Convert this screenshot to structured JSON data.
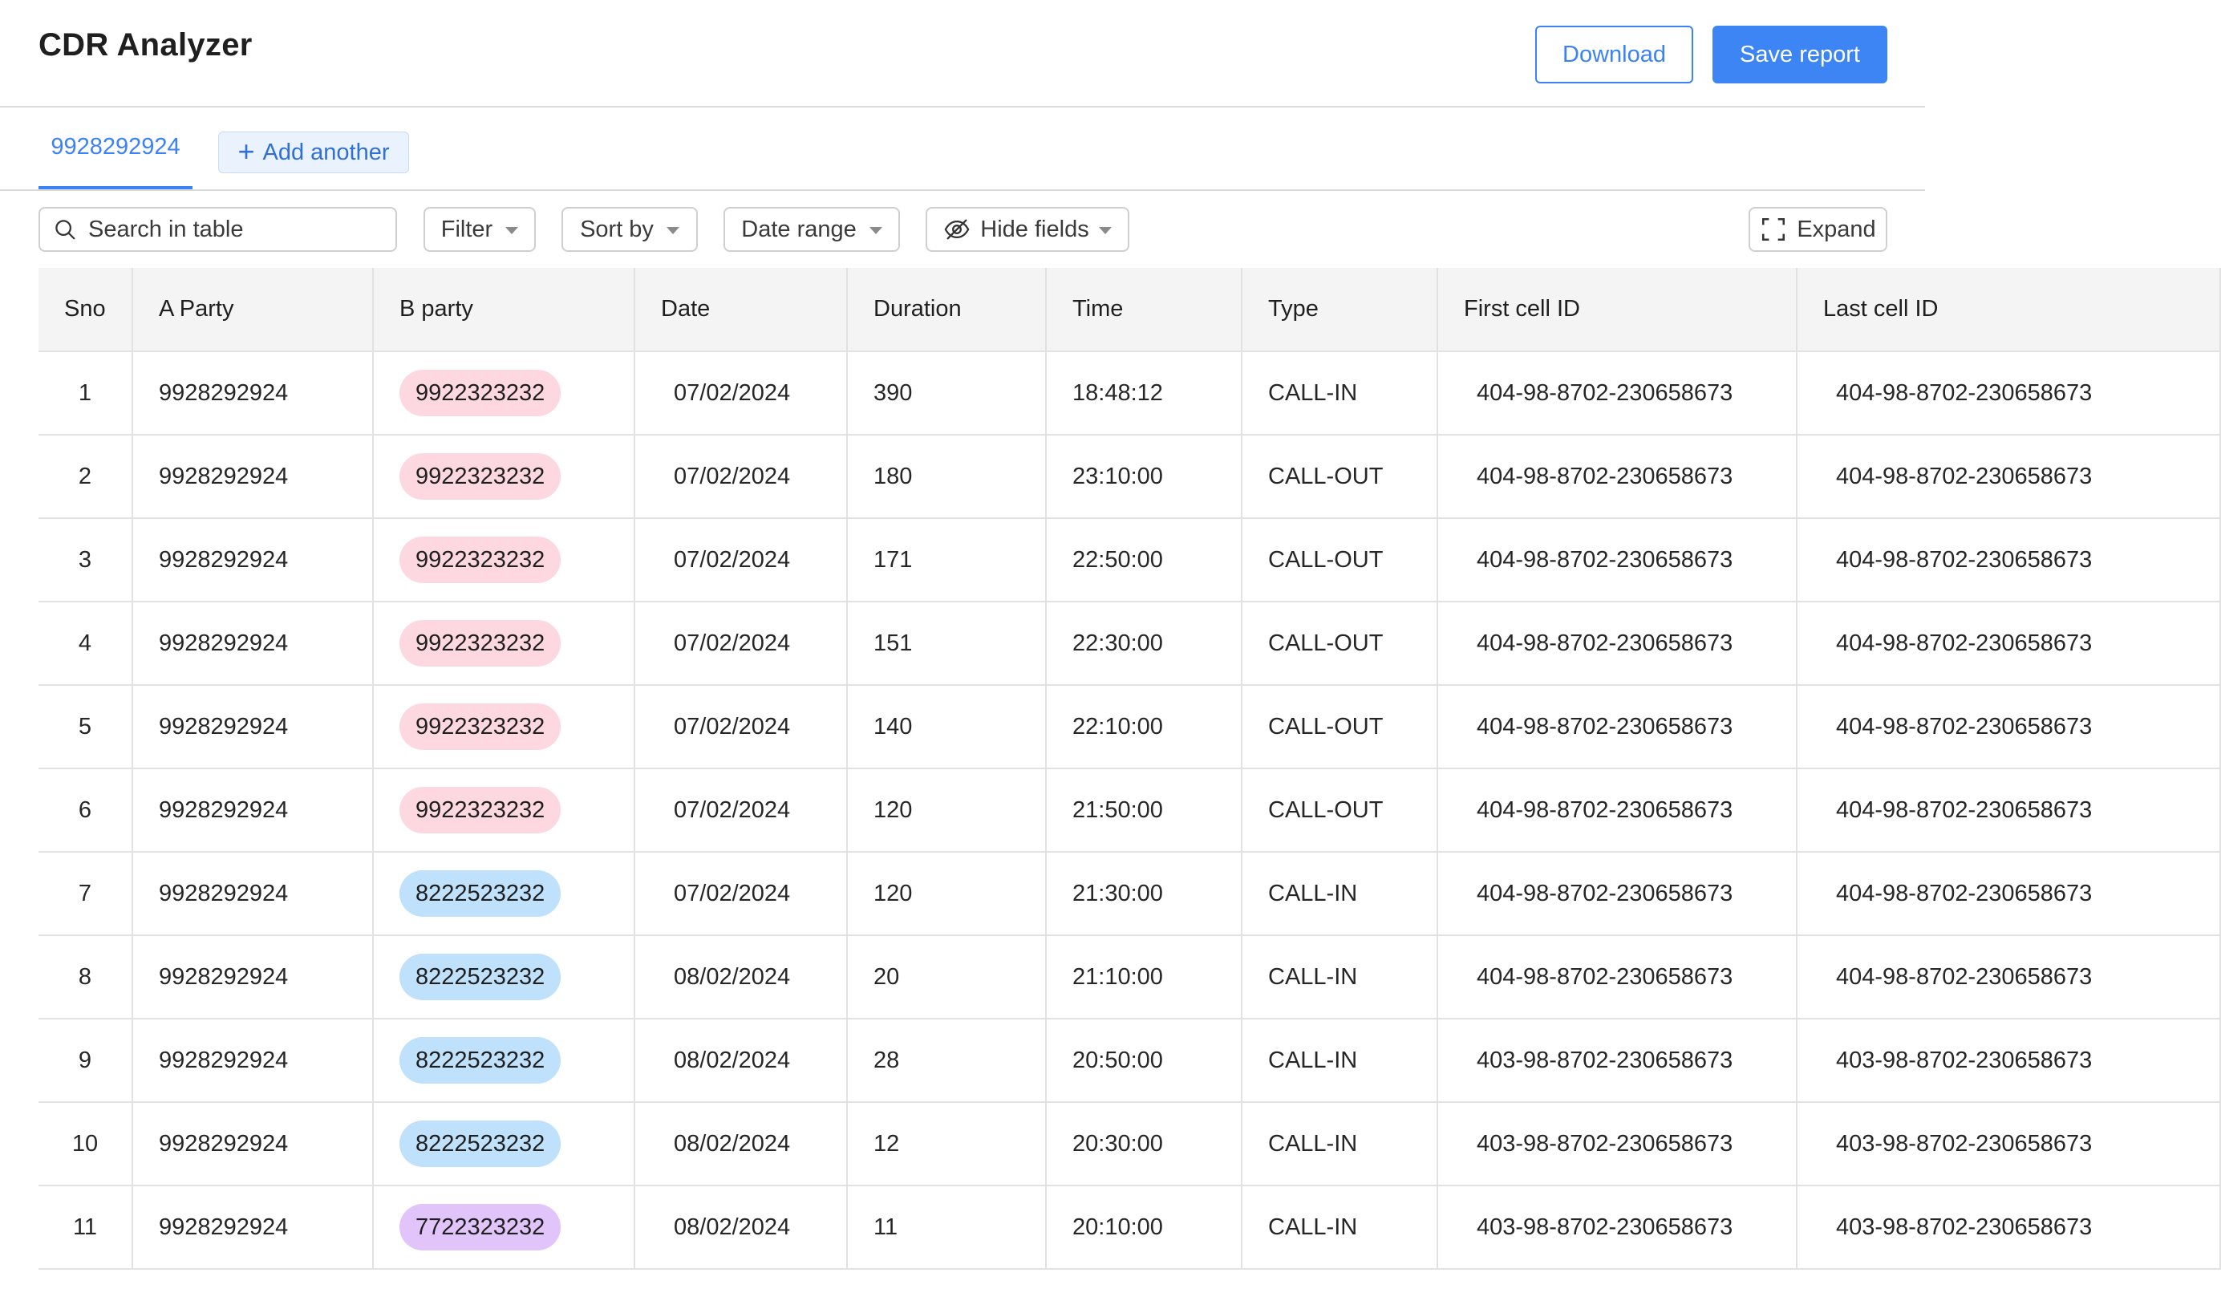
{
  "app": {
    "title": "CDR Analyzer"
  },
  "actions": {
    "download_label": "Download",
    "save_label": "Save report"
  },
  "tabs": {
    "active_label": "9928292924",
    "add_label": "Add another",
    "add_symbol": "+"
  },
  "toolbar": {
    "search_placeholder": "Search in table",
    "filter_label": "Filter",
    "sort_label": "Sort by",
    "date_label": "Date range",
    "hide_label": "Hide fields",
    "expand_label": "Expand"
  },
  "colors": {
    "accent": "#3d85f5",
    "pill_pink": "#fdd8e0",
    "pill_blue": "#bfe1fb",
    "pill_purple": "#e1c4fa"
  },
  "table": {
    "columns": [
      "Sno",
      "A Party",
      "B party",
      "Date",
      "Duration",
      "Time",
      "Type",
      "First cell ID",
      "Last cell ID"
    ],
    "rows": [
      {
        "sno": "1",
        "a": "9928292924",
        "b": "9922323232",
        "b_color": "pink",
        "date": "07/02/2024",
        "duration": "390",
        "time": "18:48:12",
        "type": "CALL-IN",
        "first": "404-98-8702-230658673",
        "last": "404-98-8702-230658673"
      },
      {
        "sno": "2",
        "a": "9928292924",
        "b": "9922323232",
        "b_color": "pink",
        "date": "07/02/2024",
        "duration": "180",
        "time": "23:10:00",
        "type": "CALL-OUT",
        "first": "404-98-8702-230658673",
        "last": "404-98-8702-230658673"
      },
      {
        "sno": "3",
        "a": "9928292924",
        "b": "9922323232",
        "b_color": "pink",
        "date": "07/02/2024",
        "duration": "171",
        "time": "22:50:00",
        "type": "CALL-OUT",
        "first": "404-98-8702-230658673",
        "last": "404-98-8702-230658673"
      },
      {
        "sno": "4",
        "a": "9928292924",
        "b": "9922323232",
        "b_color": "pink",
        "date": "07/02/2024",
        "duration": "151",
        "time": "22:30:00",
        "type": "CALL-OUT",
        "first": "404-98-8702-230658673",
        "last": "404-98-8702-230658673"
      },
      {
        "sno": "5",
        "a": "9928292924",
        "b": "9922323232",
        "b_color": "pink",
        "date": "07/02/2024",
        "duration": "140",
        "time": "22:10:00",
        "type": "CALL-OUT",
        "first": "404-98-8702-230658673",
        "last": "404-98-8702-230658673"
      },
      {
        "sno": "6",
        "a": "9928292924",
        "b": "9922323232",
        "b_color": "pink",
        "date": "07/02/2024",
        "duration": "120",
        "time": "21:50:00",
        "type": "CALL-OUT",
        "first": "404-98-8702-230658673",
        "last": "404-98-8702-230658673"
      },
      {
        "sno": "7",
        "a": "9928292924",
        "b": "8222523232",
        "b_color": "blue",
        "date": "07/02/2024",
        "duration": "120",
        "time": "21:30:00",
        "type": "CALL-IN",
        "first": "404-98-8702-230658673",
        "last": "404-98-8702-230658673"
      },
      {
        "sno": "8",
        "a": "9928292924",
        "b": "8222523232",
        "b_color": "blue",
        "date": "08/02/2024",
        "duration": "20",
        "time": "21:10:00",
        "type": "CALL-IN",
        "first": "404-98-8702-230658673",
        "last": "404-98-8702-230658673"
      },
      {
        "sno": "9",
        "a": "9928292924",
        "b": "8222523232",
        "b_color": "blue",
        "date": "08/02/2024",
        "duration": "28",
        "time": "20:50:00",
        "type": "CALL-IN",
        "first": "403-98-8702-230658673",
        "last": "403-98-8702-230658673"
      },
      {
        "sno": "10",
        "a": "9928292924",
        "b": "8222523232",
        "b_color": "blue",
        "date": "08/02/2024",
        "duration": "12",
        "time": "20:30:00",
        "type": "CALL-IN",
        "first": "403-98-8702-230658673",
        "last": "403-98-8702-230658673"
      },
      {
        "sno": "11",
        "a": "9928292924",
        "b": "7722323232",
        "b_color": "purple",
        "date": "08/02/2024",
        "duration": "11",
        "time": "20:10:00",
        "type": "CALL-IN",
        "first": "403-98-8702-230658673",
        "last": "403-98-8702-230658673"
      }
    ]
  }
}
